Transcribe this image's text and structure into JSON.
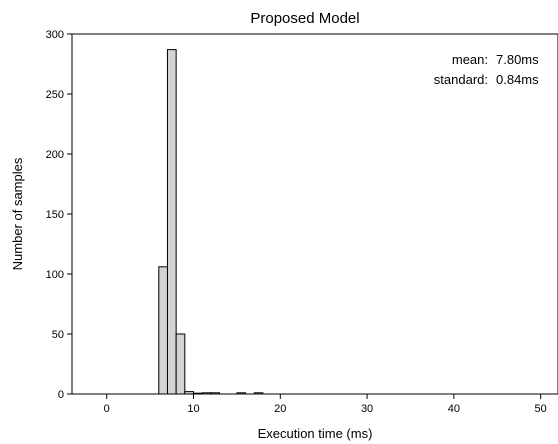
{
  "chart_data": {
    "type": "bar",
    "title": "Proposed Model",
    "xlabel": "Execution time (ms)",
    "ylabel": "Number of samples",
    "xlim": [
      -4,
      52
    ],
    "ylim": [
      0,
      300
    ],
    "xticks": [
      0,
      10,
      20,
      30,
      40,
      50
    ],
    "yticks": [
      0,
      50,
      100,
      150,
      200,
      250,
      300
    ],
    "grid": false,
    "bin_width": 1,
    "bins": [
      {
        "x0": 6,
        "x1": 7,
        "count": 106
      },
      {
        "x0": 7,
        "x1": 8,
        "count": 287
      },
      {
        "x0": 8,
        "x1": 9,
        "count": 50
      },
      {
        "x0": 9,
        "x1": 10,
        "count": 2
      },
      {
        "x0": 10,
        "x1": 11,
        "count": 0
      },
      {
        "x0": 11,
        "x1": 12,
        "count": 1
      },
      {
        "x0": 12,
        "x1": 13,
        "count": 1
      },
      {
        "x0": 15,
        "x1": 16,
        "count": 1
      },
      {
        "x0": 17,
        "x1": 18,
        "count": 1
      }
    ],
    "bar_color": "#d3d3d3",
    "edge_color": "#000000",
    "annotations": {
      "mean_label": "mean:",
      "mean_value": "7.80ms",
      "std_label": "standard:",
      "std_value": "0.84ms",
      "placement": "top-right"
    }
  }
}
